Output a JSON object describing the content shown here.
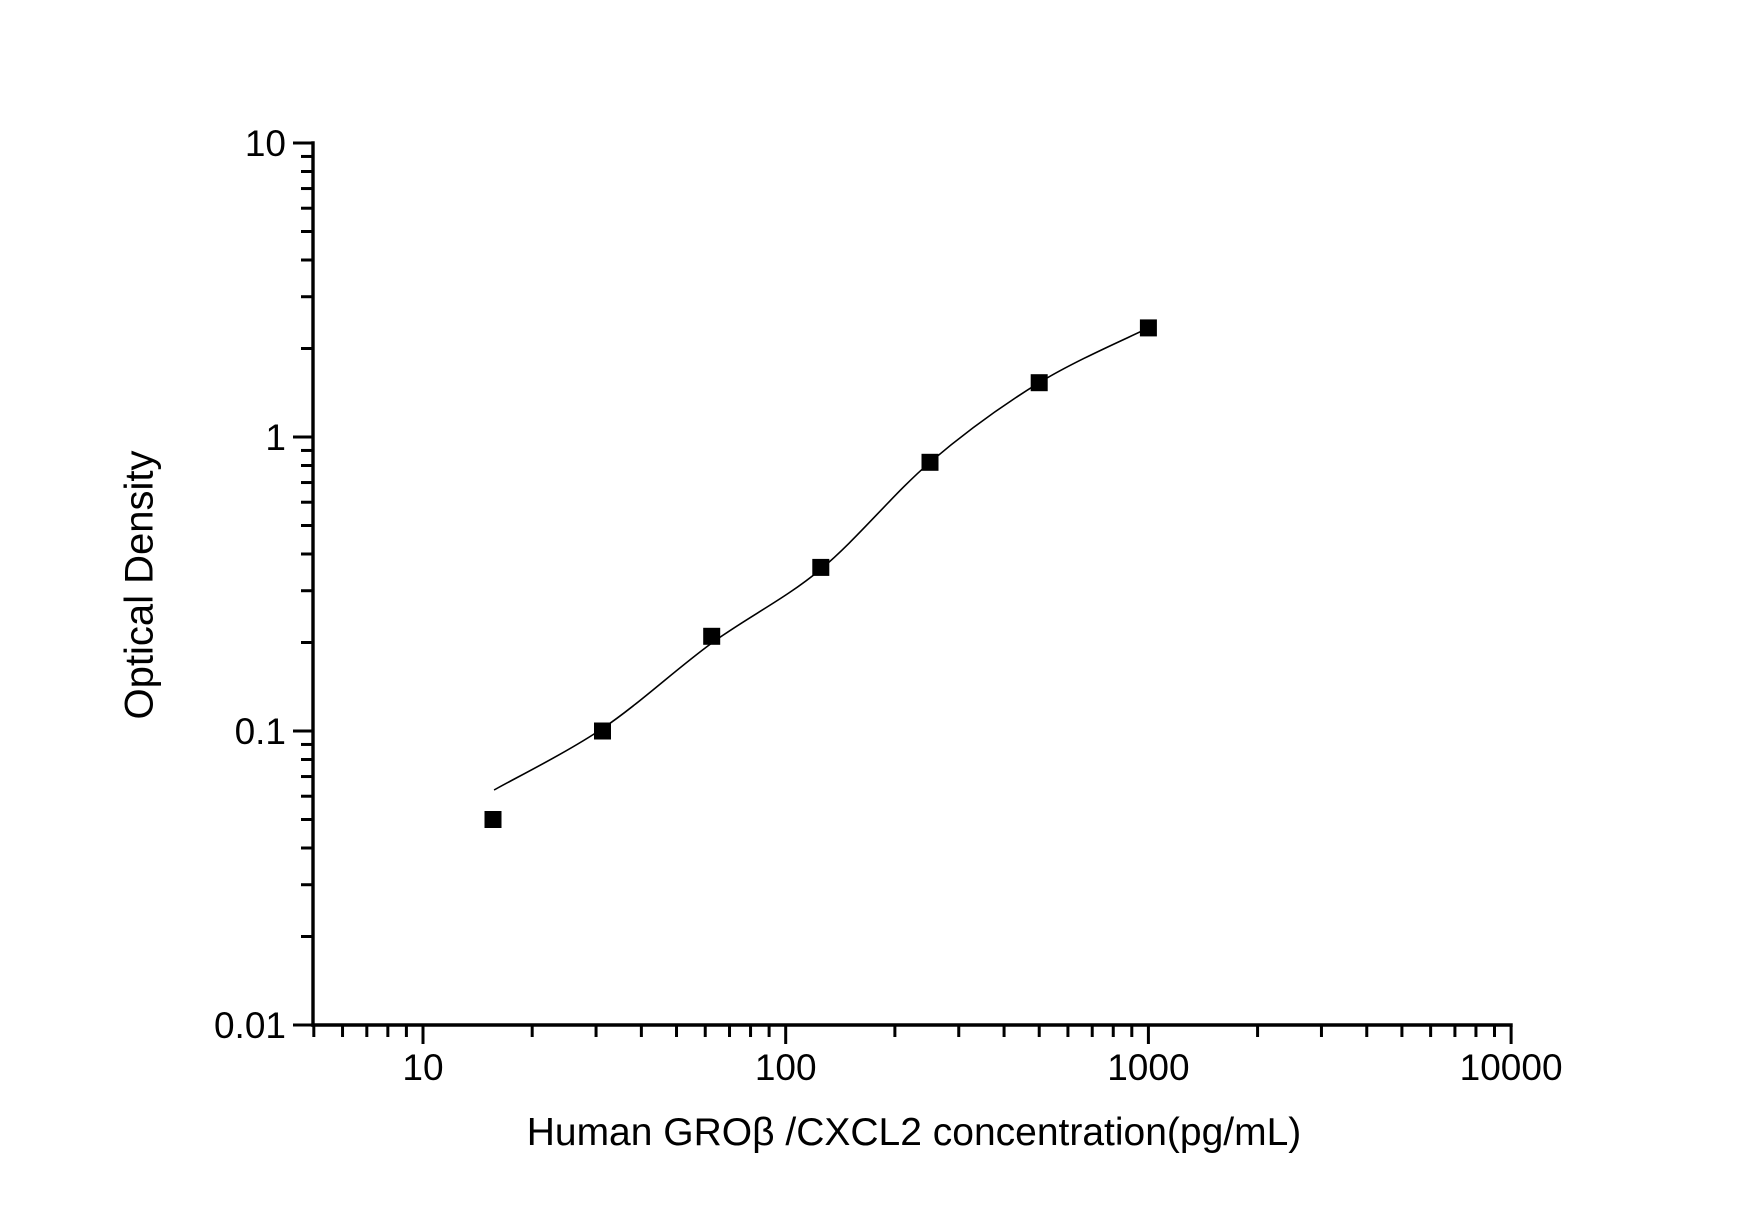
{
  "page": {
    "background_color": "#ffffff",
    "foreground_color": "#000000"
  },
  "chart_data": {
    "type": "scatter",
    "title": "",
    "xlabel": "Human GROβ /CXCL2 concentration(pg/mL)",
    "ylabel": "Optical Density",
    "x_scale": "log",
    "y_scale": "log",
    "xlim": [
      5,
      10000
    ],
    "ylim": [
      0.01,
      10
    ],
    "grid": false,
    "legend": null,
    "axis_color": "#000000",
    "marker_color": "#000000",
    "curve_color": "#000000",
    "x_major_ticks": [
      {
        "value": 10,
        "label": "10"
      },
      {
        "value": 100,
        "label": "100"
      },
      {
        "value": 1000,
        "label": "1000"
      },
      {
        "value": 10000,
        "label": "10000"
      }
    ],
    "y_major_ticks": [
      {
        "value": 0.01,
        "label": "0.01"
      },
      {
        "value": 0.1,
        "label": "0.1"
      },
      {
        "value": 1,
        "label": "1"
      },
      {
        "value": 10,
        "label": "10"
      }
    ],
    "series": [
      {
        "name": "standard-points",
        "marker": "filled-square",
        "line": "none",
        "points": [
          {
            "x": 15.6,
            "y": 0.05
          },
          {
            "x": 31.25,
            "y": 0.1
          },
          {
            "x": 62.5,
            "y": 0.21
          },
          {
            "x": 125,
            "y": 0.36
          },
          {
            "x": 250,
            "y": 0.82
          },
          {
            "x": 500,
            "y": 1.53
          },
          {
            "x": 1000,
            "y": 2.35
          }
        ]
      },
      {
        "name": "fit-curve",
        "marker": "none",
        "line": "solid",
        "points": [
          {
            "x": 15.7,
            "y": 0.063
          },
          {
            "x": 31.25,
            "y": 0.102
          },
          {
            "x": 62.5,
            "y": 0.199
          },
          {
            "x": 125,
            "y": 0.355
          },
          {
            "x": 250,
            "y": 0.82
          },
          {
            "x": 500,
            "y": 1.53
          },
          {
            "x": 1000,
            "y": 2.35
          }
        ]
      }
    ]
  }
}
